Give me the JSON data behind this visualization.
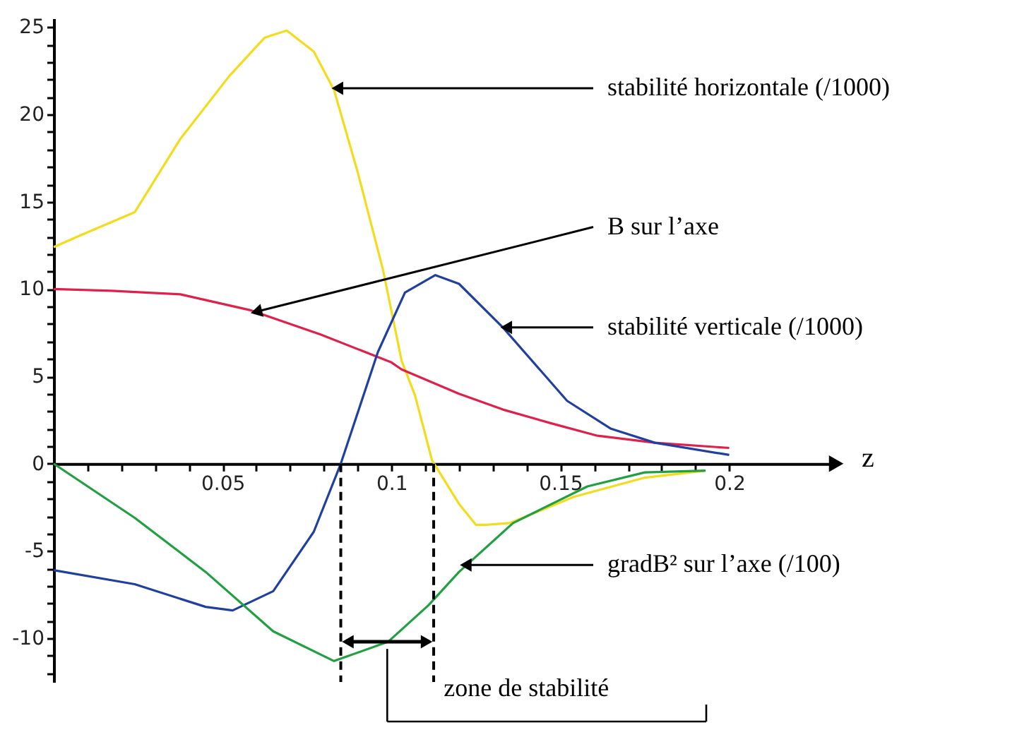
{
  "chart_data": {
    "type": "line",
    "xlabel": "z",
    "xlim": [
      0,
      0.23
    ],
    "ylim": [
      -12.5,
      25.5
    ],
    "xticks": [
      {
        "value": 0.01,
        "label": null
      },
      {
        "value": 0.02,
        "label": null
      },
      {
        "value": 0.03,
        "label": null
      },
      {
        "value": 0.04,
        "label": null
      },
      0.05,
      {
        "value": 0.06,
        "label": null
      },
      {
        "value": 0.07,
        "label": null
      },
      {
        "value": 0.08,
        "label": null
      },
      {
        "value": 0.09,
        "label": null
      },
      0.1,
      {
        "value": 0.11,
        "label": null
      },
      {
        "value": 0.12,
        "label": null
      },
      {
        "value": 0.13,
        "label": null
      },
      {
        "value": 0.14,
        "label": null
      },
      0.15,
      {
        "value": 0.16,
        "label": null
      },
      {
        "value": 0.17,
        "label": null
      },
      {
        "value": 0.18,
        "label": null
      },
      {
        "value": 0.19,
        "label": null
      },
      0.2
    ],
    "yticks": [
      {
        "value": -12,
        "label": null
      },
      {
        "value": -11,
        "label": null
      },
      -10,
      {
        "value": -9,
        "label": null
      },
      {
        "value": -8,
        "label": null
      },
      {
        "value": -7,
        "label": null
      },
      {
        "value": -6,
        "label": null
      },
      -5,
      {
        "value": -4,
        "label": null
      },
      {
        "value": -3,
        "label": null
      },
      {
        "value": -2,
        "label": null
      },
      {
        "value": -1,
        "label": null
      },
      0,
      {
        "value": 1,
        "label": null
      },
      {
        "value": 2,
        "label": null
      },
      {
        "value": 3,
        "label": null
      },
      {
        "value": 4,
        "label": null
      },
      5,
      {
        "value": 6,
        "label": null
      },
      {
        "value": 7,
        "label": null
      },
      {
        "value": 8,
        "label": null
      },
      {
        "value": 9,
        "label": null
      },
      10,
      {
        "value": 11,
        "label": null
      },
      {
        "value": 12,
        "label": null
      },
      {
        "value": 13,
        "label": null
      },
      {
        "value": 14,
        "label": null
      },
      15,
      {
        "value": 16,
        "label": null
      },
      {
        "value": 17,
        "label": null
      },
      {
        "value": 18,
        "label": null
      },
      {
        "value": 19,
        "label": null
      },
      20,
      {
        "value": 21,
        "label": null
      },
      {
        "value": 22,
        "label": null
      },
      {
        "value": 23,
        "label": null
      },
      {
        "value": 24,
        "label": null
      },
      25
    ],
    "grid": false,
    "legend": false,
    "marker": "none",
    "line_style": "solid",
    "series": [
      {
        "color": "#f2dc1c",
        "x": [
          0,
          0.007,
          0.024,
          0.0375,
          0.052,
          0.0625,
          0.069,
          0.077,
          0.083,
          0.09,
          0.0975,
          0.103,
          0.107,
          0.112,
          0.12,
          0.125,
          0.128,
          0.135,
          0.154,
          0.175,
          0.193
        ],
        "values": [
          12.4,
          13.0,
          14.4,
          18.6,
          22.2,
          24.4,
          24.8,
          23.6,
          21.4,
          16.7,
          11.1,
          5.9,
          3.9,
          0.2,
          -2.3,
          -3.5,
          -3.5,
          -3.4,
          -1.9,
          -0.8,
          -0.4
        ]
      },
      {
        "color": "#e0204a",
        "x": [
          0,
          0.017,
          0.0375,
          0.058,
          0.079,
          0.1,
          0.103,
          0.12,
          0.133,
          0.1475,
          0.161,
          0.178,
          0.2
        ],
        "values": [
          10.0,
          9.9,
          9.7,
          8.8,
          7.4,
          5.8,
          5.4,
          4.0,
          3.1,
          2.3,
          1.6,
          1.2,
          0.9
        ]
      },
      {
        "color": "#2040a0",
        "x": [
          0,
          0.024,
          0.045,
          0.053,
          0.065,
          0.077,
          0.085,
          0.096,
          0.104,
          0.113,
          0.12,
          0.133,
          0.152,
          0.165,
          0.178,
          0.2
        ],
        "values": [
          -6.1,
          -6.9,
          -8.2,
          -8.4,
          -7.3,
          -3.9,
          0,
          6.4,
          9.8,
          10.8,
          10.3,
          7.8,
          3.6,
          2.0,
          1.2,
          0.5
        ]
      },
      {
        "color": "#20a040",
        "x": [
          0,
          0.024,
          0.045,
          0.065,
          0.083,
          0.099,
          0.111,
          0.12,
          0.136,
          0.158,
          0.175,
          0.193
        ],
        "values": [
          0,
          -3.1,
          -6.2,
          -9.6,
          -11.3,
          -10.2,
          -8.1,
          -6.2,
          -3.4,
          -1.3,
          -0.5,
          -0.4
        ]
      }
    ],
    "annotations": [
      {
        "text": "stabilité horizontale (/1000)",
        "x": 0.084,
        "y": 21.5
      },
      {
        "text": "B sur l’axe",
        "x": 0.06,
        "y": 8.7
      },
      {
        "text": "stabilité verticale (/1000)",
        "x": 0.134,
        "y": 7.8
      },
      {
        "text": "gradB² sur l’axe (/100)",
        "x": 0.122,
        "y": -5.8
      },
      {
        "text": "zone de stabilité",
        "x": 0.09875,
        "y": -10.2
      }
    ],
    "ref_lines": [
      {
        "axis": "x",
        "value": 0.085,
        "line_style": "dashed",
        "color": "#000000"
      },
      {
        "axis": "x",
        "value": 0.1125,
        "line_style": "dashed",
        "color": "#000000"
      }
    ]
  }
}
